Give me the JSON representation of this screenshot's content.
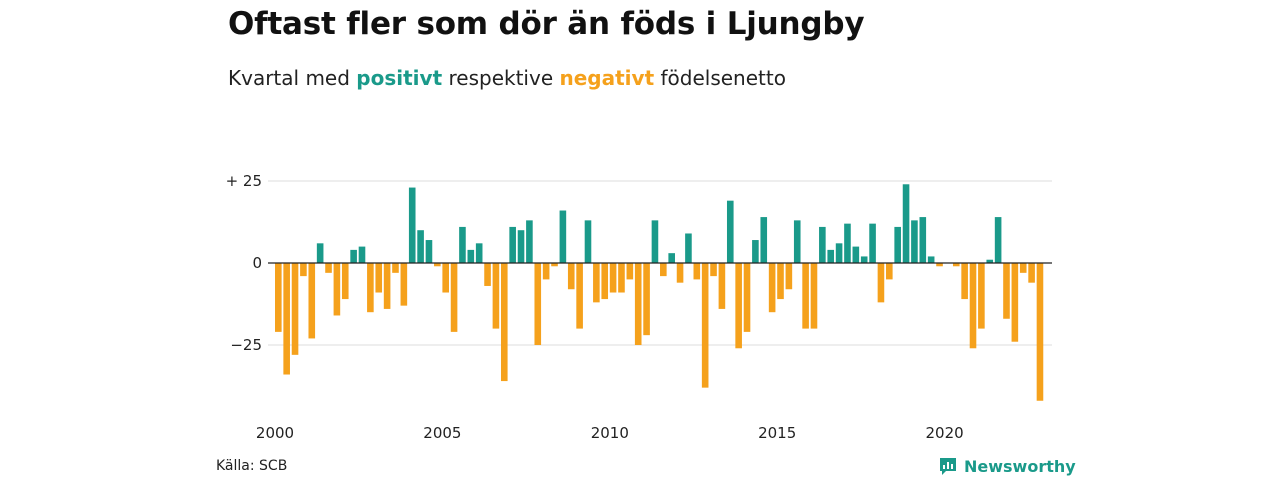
{
  "title": "Oftast fler som dör än föds i Ljungby",
  "subtitle": {
    "prefix": "Kvartal med",
    "positive": "positivt",
    "middle": "respektive",
    "negative": "negativt",
    "suffix": "födelsenetto"
  },
  "source": "Källa: SCB",
  "brand": "Newsworthy",
  "colors": {
    "positive": "#1a9a8a",
    "negative": "#f5a11c",
    "grid": "#dddddd",
    "zero": "#222222"
  },
  "chart_data": {
    "type": "bar",
    "x_start": 2000,
    "period": "quarter",
    "y_ticks": [
      {
        "value": 25,
        "label": "+ 25"
      },
      {
        "value": 0,
        "label": "0"
      },
      {
        "value": -25,
        "label": "−25"
      }
    ],
    "x_ticks": [
      {
        "value": 2000,
        "label": "2000"
      },
      {
        "value": 2005,
        "label": "2005"
      },
      {
        "value": 2010,
        "label": "2010"
      },
      {
        "value": 2015,
        "label": "2015"
      },
      {
        "value": 2020,
        "label": "2020"
      }
    ],
    "ylim": [
      -43,
      27
    ],
    "values": [
      -21,
      -34,
      -28,
      -4,
      -23,
      6,
      -3,
      -16,
      -11,
      4,
      5,
      -15,
      -9,
      -14,
      -3,
      -13,
      23,
      10,
      7,
      -1,
      -9,
      -21,
      11,
      4,
      6,
      -7,
      -20,
      -36,
      11,
      10,
      13,
      -25,
      -5,
      -1,
      16,
      -8,
      -20,
      13,
      -12,
      -11,
      -9,
      -9,
      -5,
      -25,
      -22,
      13,
      -4,
      3,
      -6,
      9,
      -5,
      -38,
      -4,
      -14,
      19,
      -26,
      -21,
      7,
      14,
      -15,
      -11,
      -8,
      13,
      -20,
      -20,
      11,
      4,
      6,
      12,
      5,
      2,
      12,
      -12,
      -5,
      11,
      24,
      13,
      14,
      2,
      -1,
      0,
      -1,
      -11,
      -26,
      -20,
      1,
      14,
      -17,
      -24,
      -3,
      -6,
      -42
    ]
  }
}
